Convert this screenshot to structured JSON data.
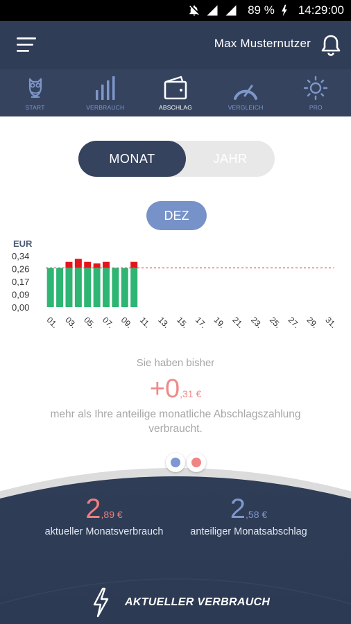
{
  "status_bar": {
    "battery": "89 %",
    "time": "14:29:00"
  },
  "header": {
    "username": "Max Musternutzer"
  },
  "nav": {
    "items": [
      {
        "label": "START",
        "icon": "owl-icon"
      },
      {
        "label": "VERBRAUCH",
        "icon": "bars-icon"
      },
      {
        "label": "ABSCHLAG",
        "icon": "wallet-icon"
      },
      {
        "label": "VERGLEICH",
        "icon": "gauge-icon"
      },
      {
        "label": "PRO",
        "icon": "sun-icon"
      }
    ],
    "active_index": 2
  },
  "toggle": {
    "month_label": "MONAT",
    "year_label": "JAHR",
    "selected": "MONAT"
  },
  "month_pill": {
    "label": "DEZ"
  },
  "chart_data": {
    "type": "bar",
    "ylabel": "EUR",
    "yticks": [
      "0,34",
      "0,26",
      "0,17",
      "0,09",
      "0,00"
    ],
    "ylim": [
      0,
      0.34
    ],
    "reference_line": 0.26,
    "xticks": [
      "01.",
      "03.",
      "05.",
      "07.",
      "09.",
      "11.",
      "13.",
      "15.",
      "17.",
      "19.",
      "21.",
      "23.",
      "25.",
      "27.",
      "29.",
      "31."
    ],
    "days": [
      1,
      2,
      3,
      4,
      5,
      6,
      7,
      8,
      9,
      10
    ],
    "values": [
      0.26,
      0.26,
      0.3,
      0.32,
      0.3,
      0.29,
      0.3,
      0.26,
      0.26,
      0.3
    ],
    "colors": {
      "base": "#2fb573",
      "over": "#e5141b",
      "reference": "#e14b4b"
    }
  },
  "summary": {
    "intro": "Sie haben bisher",
    "value_big": "+0",
    "value_small": ",31 €",
    "description": "mehr als Ihre anteilige monatliche Abschlagszahlung verbraucht."
  },
  "stats": {
    "left": {
      "big": "2",
      "small": ",89 €",
      "label": "aktueller Monatsverbrauch"
    },
    "right": {
      "big": "2",
      "small": ",58 €",
      "label": "anteiliger Monatsabschlag"
    }
  },
  "bottom_button": {
    "label": "AKTUELLER VERBRAUCH"
  },
  "colors": {
    "header": "#2f3d57",
    "nav": "#35435f",
    "accent_blue": "#7792c8",
    "accent_red": "#f08989"
  }
}
